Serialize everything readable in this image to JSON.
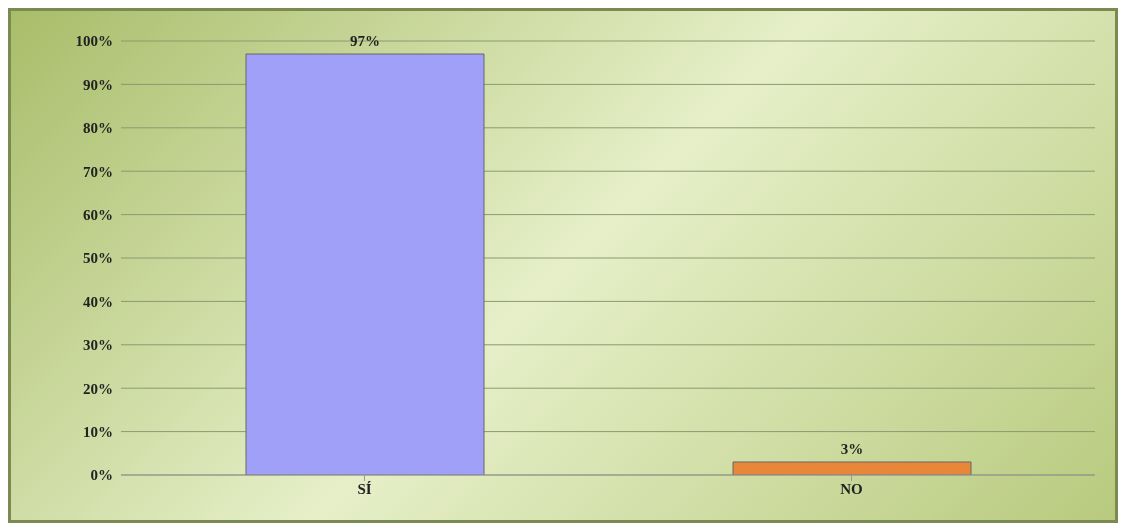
{
  "chart_data": {
    "type": "bar",
    "categories": [
      "SÍ",
      "NO"
    ],
    "values": [
      97,
      3
    ],
    "colors": [
      "#a0a0f8",
      "#e8873a"
    ],
    "ylim": [
      0,
      100
    ],
    "yticks": [
      {
        "value": 0,
        "label": "0%"
      },
      {
        "value": 10,
        "label": "10%"
      },
      {
        "value": 20,
        "label": "20%"
      },
      {
        "value": 30,
        "label": "30%"
      },
      {
        "value": 40,
        "label": "40%"
      },
      {
        "value": 50,
        "label": "50%"
      },
      {
        "value": 60,
        "label": "60%"
      },
      {
        "value": 70,
        "label": "70%"
      },
      {
        "value": 80,
        "label": "80%"
      },
      {
        "value": 90,
        "label": "90%"
      },
      {
        "value": 100,
        "label": "100%"
      }
    ],
    "value_labels": [
      "97%",
      "3%"
    ],
    "grid": "y"
  }
}
